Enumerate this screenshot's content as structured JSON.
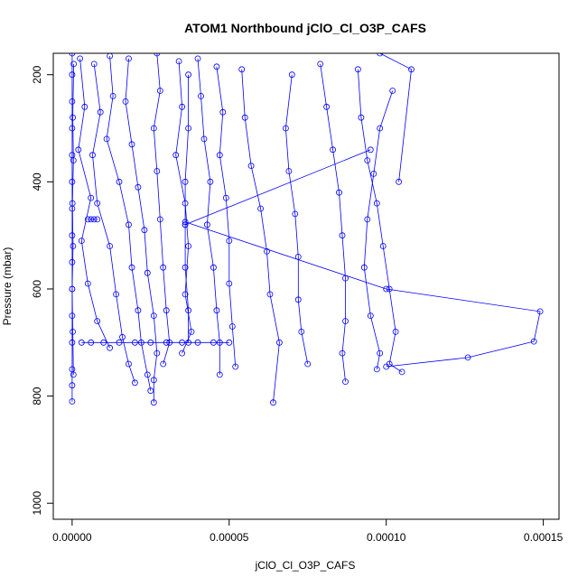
{
  "chart_data": {
    "type": "line",
    "title": "ATOM1 Northbound jClO_Cl_O3P_CAFS",
    "xlabel": "jClO_Cl_O3P_CAFS",
    "ylabel": "Pressure (mbar)",
    "xlim": [
      -6e-06,
      0.000155
    ],
    "ylim": [
      1030,
      160
    ],
    "y_reversed": true,
    "grid": false,
    "legend": "none",
    "marker": "open-circle",
    "line_color": "#0000ff",
    "x_ticks": [
      0,
      5e-05,
      0.0001,
      0.00015
    ],
    "x_tick_labels": [
      "0.00000",
      "0.00005",
      "0.00010",
      "0.00015"
    ],
    "y_ticks": [
      200,
      400,
      600,
      800,
      1000
    ],
    "y_tick_labels": [
      "200",
      "400",
      "600",
      "800",
      "1000"
    ],
    "series": [
      {
        "points": [
          [
            0,
            160
          ],
          [
            0,
            200
          ],
          [
            0,
            250
          ],
          [
            0,
            300
          ],
          [
            0,
            350
          ],
          [
            0,
            400
          ],
          [
            0,
            450
          ],
          [
            0,
            500
          ],
          [
            0,
            550
          ],
          [
            0,
            600
          ],
          [
            0,
            650
          ],
          [
            0,
            700
          ],
          [
            0,
            750
          ],
          [
            0,
            780
          ],
          [
            0,
            810
          ]
        ]
      },
      {
        "points": [
          [
            5e-07,
            180
          ],
          [
            2e-07,
            280
          ],
          [
            4e-07,
            360
          ],
          [
            1e-07,
            440
          ],
          [
            3e-07,
            520
          ],
          [
            0,
            600
          ],
          [
            2e-07,
            680
          ],
          [
            4e-07,
            760
          ]
        ]
      },
      {
        "points": [
          [
            2.5e-06,
            170
          ],
          [
            4e-06,
            260
          ],
          [
            2e-06,
            340
          ],
          [
            6e-06,
            430
          ],
          [
            3e-06,
            510
          ],
          [
            5e-06,
            590
          ],
          [
            8e-06,
            660
          ],
          [
            1.2e-05,
            710
          ]
        ]
      },
      {
        "points": [
          [
            7e-06,
            180
          ],
          [
            9e-06,
            270
          ],
          [
            6.5e-06,
            350
          ],
          [
            8e-06,
            440
          ],
          [
            1.2e-05,
            520
          ],
          [
            1.4e-05,
            610
          ],
          [
            1.6e-05,
            690
          ],
          [
            1.8e-05,
            740
          ],
          [
            2e-05,
            775
          ]
        ]
      },
      {
        "points": [
          [
            1.2e-05,
            165
          ],
          [
            1.3e-05,
            240
          ],
          [
            1.1e-05,
            320
          ],
          [
            1.5e-05,
            400
          ],
          [
            1.8e-05,
            480
          ],
          [
            1.9e-05,
            560
          ],
          [
            2.1e-05,
            640
          ],
          [
            2.2e-05,
            700
          ],
          [
            2.4e-05,
            760
          ],
          [
            2.5e-05,
            790
          ]
        ]
      },
      {
        "points": [
          [
            1.8e-05,
            170
          ],
          [
            1.7e-05,
            250
          ],
          [
            1.9e-05,
            330
          ],
          [
            2.1e-05,
            410
          ],
          [
            2.3e-05,
            490
          ],
          [
            2.4e-05,
            570
          ],
          [
            2.6e-05,
            650
          ],
          [
            2.7e-05,
            720
          ],
          [
            2.6e-05,
            770
          ],
          [
            2.6e-05,
            812
          ]
        ]
      },
      {
        "points": [
          [
            2.7e-05,
            160
          ],
          [
            2.8e-05,
            230
          ],
          [
            2.6e-05,
            300
          ],
          [
            2.7e-05,
            380
          ],
          [
            2.8e-05,
            470
          ],
          [
            2.9e-05,
            560
          ],
          [
            3e-05,
            640
          ],
          [
            3.1e-05,
            700
          ],
          [
            2.9e-05,
            740
          ]
        ]
      },
      {
        "points": [
          [
            3.4e-05,
            175
          ],
          [
            3.5e-05,
            260
          ],
          [
            3.3e-05,
            350
          ],
          [
            3.6e-05,
            440
          ],
          [
            3.7e-05,
            520
          ],
          [
            3.6e-05,
            610
          ],
          [
            3.8e-05,
            680
          ],
          [
            3.5e-05,
            720
          ]
        ]
      },
      {
        "points": [
          [
            4e-05,
            170
          ],
          [
            4.1e-05,
            240
          ],
          [
            4.2e-05,
            320
          ],
          [
            4.4e-05,
            400
          ],
          [
            4.3e-05,
            480
          ],
          [
            4.5e-05,
            560
          ],
          [
            4.6e-05,
            640
          ],
          [
            4.7e-05,
            700
          ],
          [
            4.7e-05,
            760
          ]
        ]
      },
      {
        "points": [
          [
            4.6e-05,
            185
          ],
          [
            4.8e-05,
            270
          ],
          [
            4.7e-05,
            350
          ],
          [
            4.9e-05,
            430
          ],
          [
            5e-05,
            510
          ],
          [
            5e-05,
            590
          ],
          [
            5.1e-05,
            670
          ],
          [
            5.2e-05,
            745
          ]
        ]
      },
      {
        "points": [
          [
            5.4e-05,
            190
          ],
          [
            5.5e-05,
            280
          ],
          [
            5.7e-05,
            370
          ],
          [
            6e-05,
            450
          ],
          [
            6.2e-05,
            530
          ],
          [
            6.3e-05,
            610
          ],
          [
            6.6e-05,
            700
          ],
          [
            6.4e-05,
            812
          ]
        ]
      },
      {
        "points": [
          [
            7e-05,
            200
          ],
          [
            6.8e-05,
            300
          ],
          [
            6.9e-05,
            380
          ],
          [
            7.1e-05,
            460
          ],
          [
            7.2e-05,
            540
          ],
          [
            7.2e-05,
            620
          ],
          [
            7.3e-05,
            680
          ],
          [
            7.5e-05,
            740
          ]
        ]
      },
      {
        "points": [
          [
            7.9e-05,
            180
          ],
          [
            8.1e-05,
            260
          ],
          [
            8.3e-05,
            340
          ],
          [
            8.5e-05,
            420
          ],
          [
            8.6e-05,
            500
          ],
          [
            8.7e-05,
            580
          ],
          [
            8.7e-05,
            660
          ],
          [
            8.6e-05,
            720
          ],
          [
            8.7e-05,
            773
          ]
        ]
      },
      {
        "points": [
          [
            9.1e-05,
            190
          ],
          [
            9.2e-05,
            280
          ],
          [
            9.4e-05,
            360
          ],
          [
            9.7e-05,
            440
          ],
          [
            9.9e-05,
            520
          ],
          [
            0.000101,
            600
          ],
          [
            0.000103,
            680
          ],
          [
            0.000101,
            740
          ],
          [
            0.000105,
            755
          ]
        ]
      },
      {
        "points": [
          [
            0.000102,
            230
          ],
          [
            9.8e-05,
            300
          ],
          [
            9.6e-05,
            385
          ],
          [
            9.4e-05,
            470
          ],
          [
            9.3e-05,
            560
          ],
          [
            9.5e-05,
            650
          ],
          [
            9.8e-05,
            720
          ],
          [
            9.7e-05,
            750
          ]
        ]
      },
      {
        "points": [
          [
            3.7e-05,
            200
          ],
          [
            3.7e-05,
            300
          ],
          [
            3.6e-05,
            400
          ],
          [
            3.6e-05,
            480
          ],
          [
            3.6e-05,
            560
          ],
          [
            3.7e-05,
            640
          ],
          [
            3.7e-05,
            700
          ]
        ]
      },
      {
        "points": [
          [
            3.6e-05,
            480
          ],
          [
            9.5e-05,
            340
          ]
        ]
      },
      {
        "points": [
          [
            3.6e-05,
            475
          ],
          [
            0.0001,
            600
          ],
          [
            0.000149,
            642
          ],
          [
            0.000147,
            698
          ],
          [
            0.000126,
            728
          ],
          [
            0.0001,
            745
          ]
        ]
      },
      {
        "points": [
          [
            0.000104,
            400
          ],
          [
            0.000108,
            190
          ],
          [
            9.8e-05,
            160
          ]
        ]
      },
      {
        "points": [
          [
            5e-06,
            470
          ],
          [
            6e-06,
            470
          ],
          [
            7e-06,
            470
          ],
          [
            8e-06,
            470
          ]
        ]
      },
      {
        "points": [
          [
            3e-06,
            700
          ],
          [
            6e-06,
            700
          ],
          [
            1e-05,
            700
          ],
          [
            1.5e-05,
            700
          ],
          [
            2e-05,
            700
          ],
          [
            2.5e-05,
            700
          ],
          [
            3e-05,
            700
          ],
          [
            3.5e-05,
            700
          ],
          [
            4e-05,
            700
          ],
          [
            4.5e-05,
            700
          ],
          [
            5e-05,
            700
          ]
        ]
      }
    ]
  }
}
